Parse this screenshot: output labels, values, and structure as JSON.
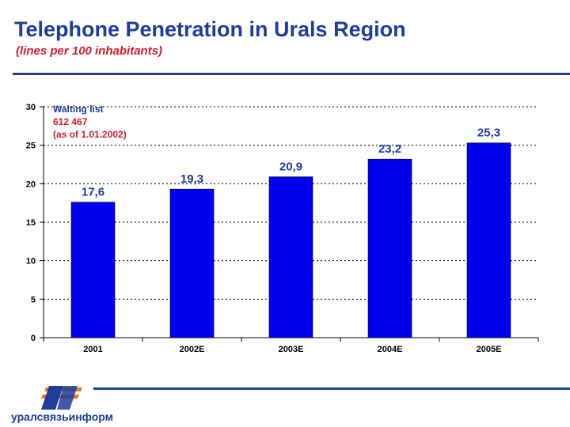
{
  "header": {
    "title": "Telephone Penetration in Urals Region",
    "subtitle": "(lines per 100 inhabitants)"
  },
  "annotation": {
    "title": "Waiting list",
    "value": "612 467",
    "note": "(as of 1.01.2002)"
  },
  "chart_data": {
    "type": "bar",
    "categories": [
      "2001",
      "2002E",
      "2003E",
      "2004E",
      "2005E"
    ],
    "values": [
      17.6,
      19.3,
      20.9,
      23.2,
      25.3
    ],
    "value_labels": [
      "17,6",
      "19,3",
      "20,9",
      "23,2",
      "25,3"
    ],
    "ylim": [
      0,
      30
    ],
    "yticks": [
      0,
      5,
      10,
      15,
      20,
      25,
      30
    ],
    "grid": true,
    "bar_color": "#0000ee",
    "label_color": "#1f3d99"
  },
  "footer": {
    "logo_text": "уралсвязьинформ",
    "brand_color": "#1f3d99",
    "accent_color": "#e8792a"
  }
}
